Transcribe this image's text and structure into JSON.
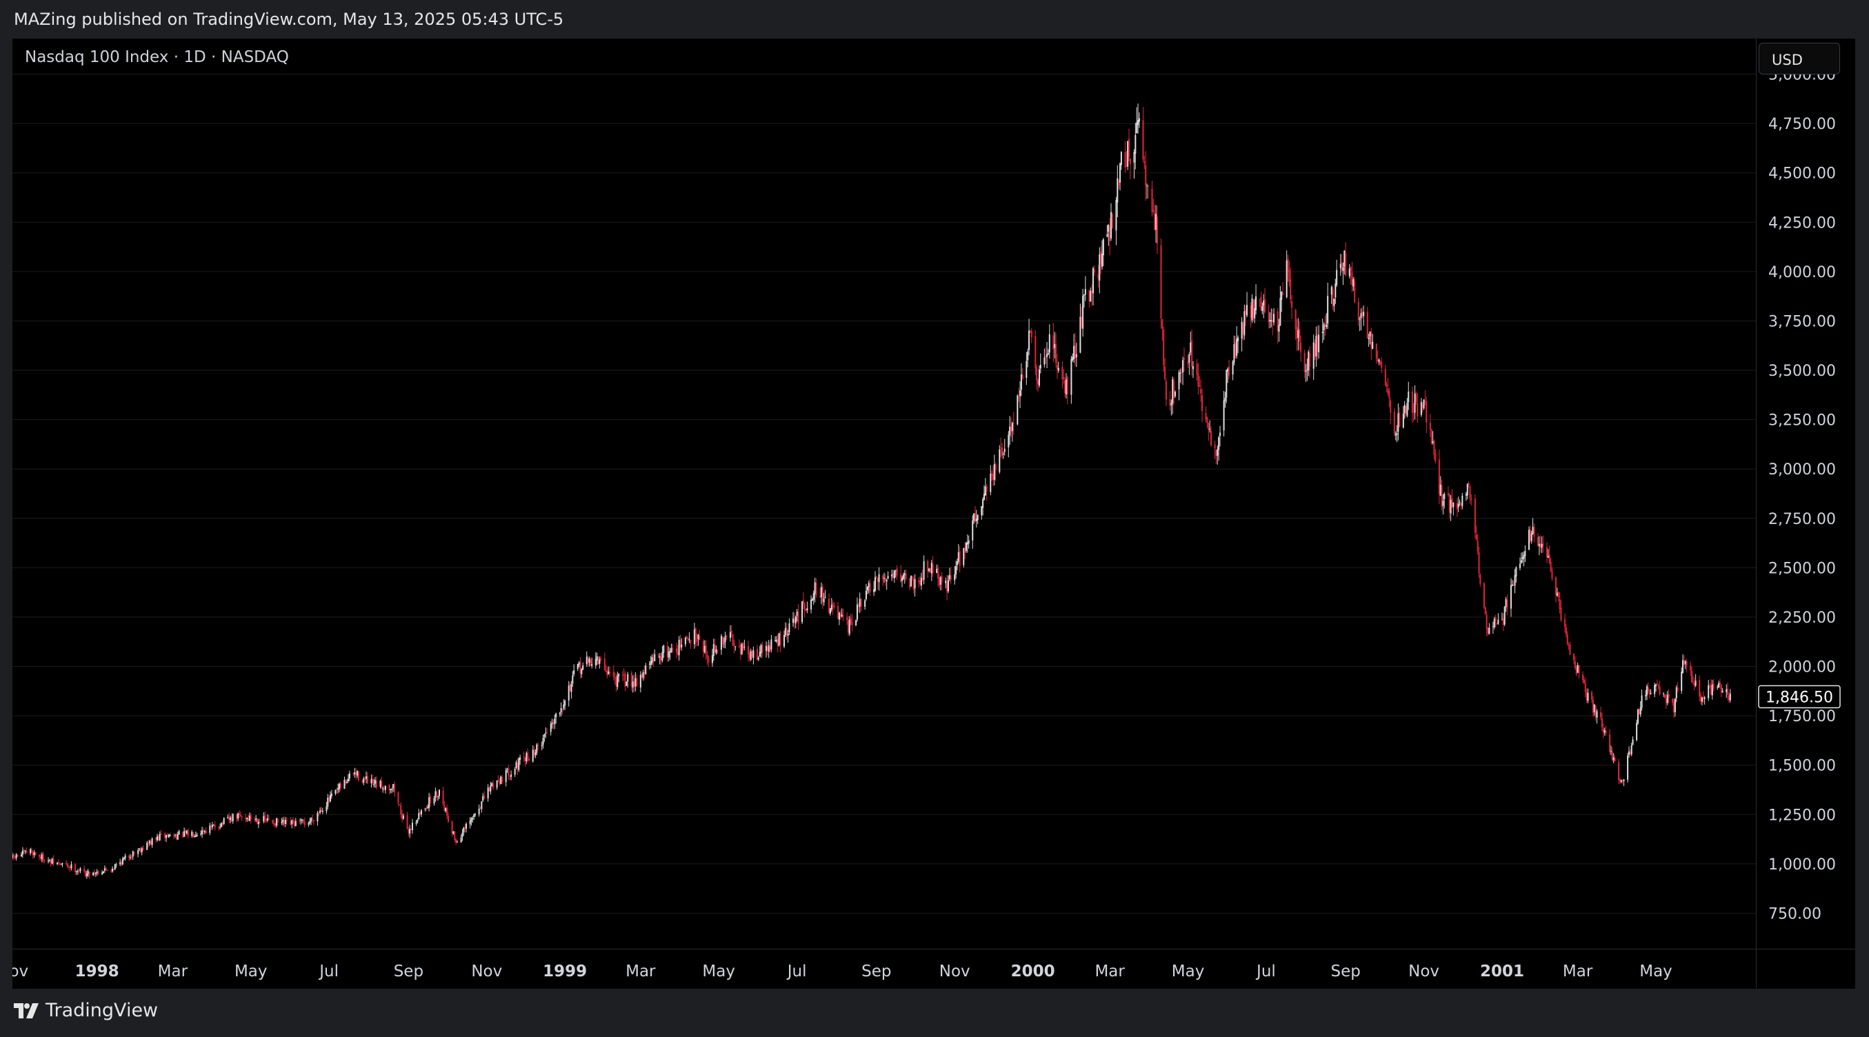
{
  "header": {
    "published_text": "MAZing published on TradingView.com, May 13, 2025 05:43 UTC-5"
  },
  "chart": {
    "symbol_label": "Nasdaq 100 Index · 1D · NASDAQ",
    "currency_button": "USD",
    "last_price_label": "1,846.50"
  },
  "footer": {
    "brand": "TradingView"
  },
  "colors": {
    "up": "#e0e0e0",
    "down": "#e0263a",
    "background": "#000000",
    "grid": "#1c1c1c"
  },
  "chart_data": {
    "type": "candlestick",
    "y_axis_ticks": [
      750,
      1000,
      1250,
      1500,
      1750,
      2000,
      2250,
      2500,
      2750,
      3000,
      3250,
      3500,
      3750,
      4000,
      4250,
      4500,
      4750,
      5000
    ],
    "y_axis_tick_labels": [
      "750.00",
      "1,000.00",
      "1,250.00",
      "1,500.00",
      "1,750.00",
      "2,000.00",
      "2,250.00",
      "2,500.00",
      "2,750.00",
      "3,000.00",
      "3,250.00",
      "3,500.00",
      "3,750.00",
      "4,000.00",
      "4,250.00",
      "4,500.00",
      "4,750.00",
      "5,000.00"
    ],
    "x_axis_labels": [
      {
        "date": "1997-11-01",
        "label": "ov",
        "bold": false
      },
      {
        "date": "1998-01-01",
        "label": "1998",
        "bold": true
      },
      {
        "date": "1998-03-01",
        "label": "Mar",
        "bold": false
      },
      {
        "date": "1998-05-01",
        "label": "May",
        "bold": false
      },
      {
        "date": "1998-07-01",
        "label": "Jul",
        "bold": false
      },
      {
        "date": "1998-09-01",
        "label": "Sep",
        "bold": false
      },
      {
        "date": "1998-11-01",
        "label": "Nov",
        "bold": false
      },
      {
        "date": "1999-01-01",
        "label": "1999",
        "bold": true
      },
      {
        "date": "1999-03-01",
        "label": "Mar",
        "bold": false
      },
      {
        "date": "1999-05-01",
        "label": "May",
        "bold": false
      },
      {
        "date": "1999-07-01",
        "label": "Jul",
        "bold": false
      },
      {
        "date": "1999-09-01",
        "label": "Sep",
        "bold": false
      },
      {
        "date": "1999-11-01",
        "label": "Nov",
        "bold": false
      },
      {
        "date": "2000-01-01",
        "label": "2000",
        "bold": true
      },
      {
        "date": "2000-03-01",
        "label": "Mar",
        "bold": false
      },
      {
        "date": "2000-05-01",
        "label": "May",
        "bold": false
      },
      {
        "date": "2000-07-01",
        "label": "Jul",
        "bold": false
      },
      {
        "date": "2000-09-01",
        "label": "Sep",
        "bold": false
      },
      {
        "date": "2000-11-01",
        "label": "Nov",
        "bold": false
      },
      {
        "date": "2001-01-01",
        "label": "2001",
        "bold": true
      },
      {
        "date": "2001-03-01",
        "label": "Mar",
        "bold": false
      },
      {
        "date": "2001-05-01",
        "label": "May",
        "bold": false
      }
    ],
    "x_range": [
      "1997-10-27",
      "2001-07-18"
    ],
    "y_range": [
      570,
      5180
    ],
    "last_price": 1846.5,
    "close_series": [
      {
        "date": "1997-10-27",
        "close": 1030
      },
      {
        "date": "1997-11-10",
        "close": 1065
      },
      {
        "date": "1997-11-25",
        "close": 1010
      },
      {
        "date": "1997-12-10",
        "close": 990
      },
      {
        "date": "1997-12-24",
        "close": 950
      },
      {
        "date": "1998-01-12",
        "close": 975
      },
      {
        "date": "1998-01-30",
        "close": 1060
      },
      {
        "date": "1998-02-20",
        "close": 1140
      },
      {
        "date": "1998-03-13",
        "close": 1150
      },
      {
        "date": "1998-03-31",
        "close": 1180
      },
      {
        "date": "1998-04-20",
        "close": 1240
      },
      {
        "date": "1998-05-08",
        "close": 1225
      },
      {
        "date": "1998-05-29",
        "close": 1200
      },
      {
        "date": "1998-06-15",
        "close": 1210
      },
      {
        "date": "1998-07-02",
        "close": 1330
      },
      {
        "date": "1998-07-20",
        "close": 1460
      },
      {
        "date": "1998-08-04",
        "close": 1400
      },
      {
        "date": "1998-08-20",
        "close": 1390
      },
      {
        "date": "1998-08-31",
        "close": 1160
      },
      {
        "date": "1998-09-15",
        "close": 1300
      },
      {
        "date": "1998-09-25",
        "close": 1370
      },
      {
        "date": "1998-10-08",
        "close": 1110
      },
      {
        "date": "1998-10-20",
        "close": 1220
      },
      {
        "date": "1998-11-05",
        "close": 1400
      },
      {
        "date": "1998-11-23",
        "close": 1490
      },
      {
        "date": "1998-12-10",
        "close": 1580
      },
      {
        "date": "1998-12-31",
        "close": 1830
      },
      {
        "date": "1999-01-11",
        "close": 1990
      },
      {
        "date": "1999-01-25",
        "close": 2040
      },
      {
        "date": "1999-02-10",
        "close": 1930
      },
      {
        "date": "1999-02-26",
        "close": 1930
      },
      {
        "date": "1999-03-15",
        "close": 2060
      },
      {
        "date": "1999-03-31",
        "close": 2100
      },
      {
        "date": "1999-04-15",
        "close": 2170
      },
      {
        "date": "1999-04-22",
        "close": 2050
      },
      {
        "date": "1999-05-10",
        "close": 2160
      },
      {
        "date": "1999-05-24",
        "close": 2050
      },
      {
        "date": "1999-06-07",
        "close": 2090
      },
      {
        "date": "1999-06-21",
        "close": 2150
      },
      {
        "date": "1999-07-16",
        "close": 2400
      },
      {
        "date": "1999-08-02",
        "close": 2250
      },
      {
        "date": "1999-08-10",
        "close": 2190
      },
      {
        "date": "1999-08-25",
        "close": 2380
      },
      {
        "date": "1999-09-15",
        "close": 2490
      },
      {
        "date": "1999-10-01",
        "close": 2420
      },
      {
        "date": "1999-10-12",
        "close": 2530
      },
      {
        "date": "1999-10-25",
        "close": 2400
      },
      {
        "date": "1999-11-10",
        "close": 2620
      },
      {
        "date": "1999-11-25",
        "close": 2900
      },
      {
        "date": "1999-12-13",
        "close": 3150
      },
      {
        "date": "1999-12-31",
        "close": 3700
      },
      {
        "date": "2000-01-04",
        "close": 3400
      },
      {
        "date": "2000-01-14",
        "close": 3650
      },
      {
        "date": "2000-01-28",
        "close": 3400
      },
      {
        "date": "2000-02-10",
        "close": 3850
      },
      {
        "date": "2000-02-28",
        "close": 4150
      },
      {
        "date": "2000-03-10",
        "close": 4550
      },
      {
        "date": "2000-03-24",
        "close": 4700
      },
      {
        "date": "2000-03-31",
        "close": 4400
      },
      {
        "date": "2000-04-07",
        "close": 4200
      },
      {
        "date": "2000-04-14",
        "close": 3300
      },
      {
        "date": "2000-04-24",
        "close": 3500
      },
      {
        "date": "2000-05-03",
        "close": 3600
      },
      {
        "date": "2000-05-12",
        "close": 3300
      },
      {
        "date": "2000-05-23",
        "close": 3050
      },
      {
        "date": "2000-06-01",
        "close": 3500
      },
      {
        "date": "2000-06-15",
        "close": 3780
      },
      {
        "date": "2000-06-26",
        "close": 3850
      },
      {
        "date": "2000-07-10",
        "close": 3720
      },
      {
        "date": "2000-07-17",
        "close": 4000
      },
      {
        "date": "2000-07-31",
        "close": 3500
      },
      {
        "date": "2000-08-10",
        "close": 3650
      },
      {
        "date": "2000-08-25",
        "close": 3950
      },
      {
        "date": "2000-09-01",
        "close": 4050
      },
      {
        "date": "2000-09-12",
        "close": 3780
      },
      {
        "date": "2000-09-26",
        "close": 3600
      },
      {
        "date": "2000-10-10",
        "close": 3200
      },
      {
        "date": "2000-10-20",
        "close": 3350
      },
      {
        "date": "2000-11-02",
        "close": 3300
      },
      {
        "date": "2000-11-15",
        "close": 2850
      },
      {
        "date": "2000-11-30",
        "close": 2800
      },
      {
        "date": "2000-12-05",
        "close": 2950
      },
      {
        "date": "2000-12-20",
        "close": 2200
      },
      {
        "date": "2001-01-02",
        "close": 2250
      },
      {
        "date": "2001-01-10",
        "close": 2450
      },
      {
        "date": "2001-01-24",
        "close": 2700
      },
      {
        "date": "2001-02-05",
        "close": 2550
      },
      {
        "date": "2001-02-20",
        "close": 2150
      },
      {
        "date": "2001-03-05",
        "close": 1900
      },
      {
        "date": "2001-03-20",
        "close": 1700
      },
      {
        "date": "2001-04-04",
        "close": 1400
      },
      {
        "date": "2001-04-12",
        "close": 1600
      },
      {
        "date": "2001-04-20",
        "close": 1850
      },
      {
        "date": "2001-05-01",
        "close": 1900
      },
      {
        "date": "2001-05-15",
        "close": 1800
      },
      {
        "date": "2001-05-22",
        "close": 2030
      },
      {
        "date": "2001-06-05",
        "close": 1850
      },
      {
        "date": "2001-06-18",
        "close": 1900
      },
      {
        "date": "2001-06-29",
        "close": 1846.5
      }
    ]
  }
}
